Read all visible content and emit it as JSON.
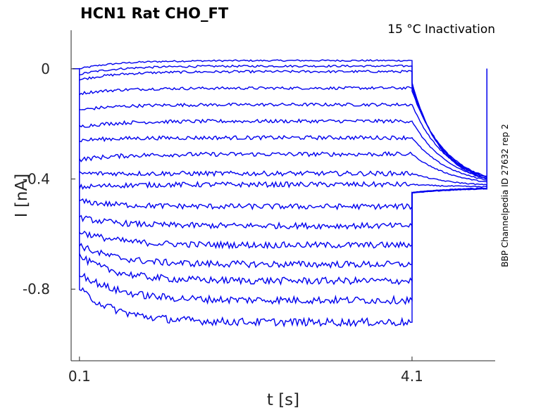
{
  "chart_data": {
    "type": "line",
    "title": "HCN1  Rat  CHO_FT",
    "annotation": "15 °C  Inactivation",
    "side_label": "BBP Channelpedia ID 27632 rep 2",
    "xlabel": "t [s]",
    "ylabel": "I [nA]",
    "xlim": [
      0.0,
      5.1
    ],
    "ylim": [
      -1.06,
      0.14
    ],
    "x_ticks": [
      0.1,
      4.1
    ],
    "x_tick_labels": [
      "0.1",
      "4.1"
    ],
    "y_ticks": [
      0,
      -0.4,
      -0.8
    ],
    "y_tick_labels": [
      "0",
      "-0.4",
      "-0.8"
    ],
    "grid": false,
    "line_color": "#0000ee",
    "protocol": {
      "pre_end_s": 0.1,
      "step_end_s": 4.1,
      "trace_end_s": 5.0,
      "tail_steady_nA": -0.43
    },
    "series": [
      {
        "values": {
          "initial": 0.0,
          "steady": 0.03
        }
      },
      {
        "values": {
          "initial": -0.02,
          "steady": 0.01
        }
      },
      {
        "values": {
          "initial": -0.04,
          "steady": -0.01
        }
      },
      {
        "values": {
          "initial": -0.09,
          "steady": -0.07
        }
      },
      {
        "values": {
          "initial": -0.15,
          "steady": -0.13
        }
      },
      {
        "values": {
          "initial": -0.21,
          "steady": -0.19
        }
      },
      {
        "values": {
          "initial": -0.26,
          "steady": -0.25
        }
      },
      {
        "values": {
          "initial": -0.33,
          "steady": -0.31
        }
      },
      {
        "values": {
          "initial": -0.38,
          "steady": -0.38
        }
      },
      {
        "values": {
          "initial": -0.43,
          "steady": -0.42
        }
      },
      {
        "values": {
          "initial": -0.48,
          "steady": -0.5
        }
      },
      {
        "values": {
          "initial": -0.54,
          "steady": -0.57
        }
      },
      {
        "values": {
          "initial": -0.59,
          "steady": -0.64
        }
      },
      {
        "values": {
          "initial": -0.64,
          "steady": -0.71
        }
      },
      {
        "values": {
          "initial": -0.68,
          "steady": -0.77
        }
      },
      {
        "values": {
          "initial": -0.74,
          "steady": -0.84
        }
      },
      {
        "values": {
          "initial": -0.8,
          "steady": -0.92
        }
      }
    ]
  }
}
